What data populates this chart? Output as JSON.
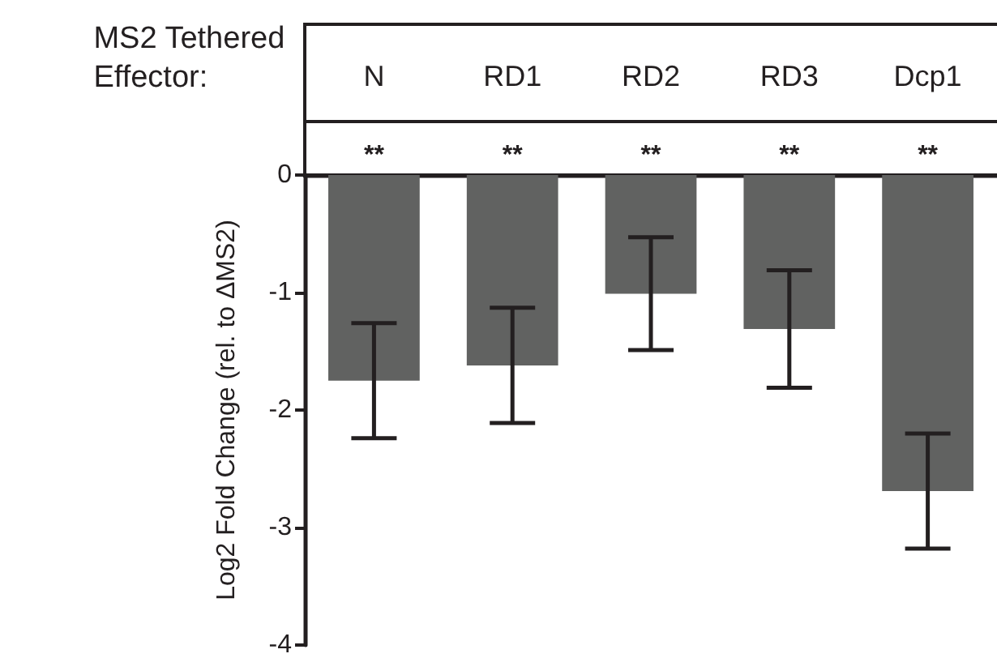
{
  "chart_data": {
    "type": "bar",
    "xlabel": "MS2 Tethered Effector:",
    "ylabel": "Log2 Fold Change (rel. to ΔMS2)",
    "categories": [
      "N",
      "RD1",
      "RD2",
      "RD3",
      "Dcp1"
    ],
    "values": [
      -1.75,
      -1.62,
      -1.01,
      -1.31,
      -2.69
    ],
    "errors": [
      0.49,
      0.49,
      0.48,
      0.5,
      0.49
    ],
    "color": "#616261",
    "ylim": [
      -4,
      0
    ],
    "yticks": [
      0,
      -1,
      -2,
      -3,
      -4
    ],
    "grid": false,
    "annotations": [
      "**",
      "**",
      "**",
      "**",
      "**"
    ]
  }
}
